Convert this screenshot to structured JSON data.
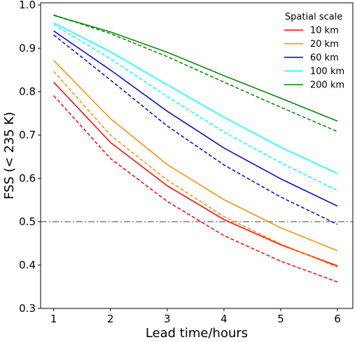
{
  "chart_data": {
    "type": "line",
    "xlabel": "Lead time/hours",
    "ylabel": "FSS (< 235 K)",
    "xlim": [
      0.77,
      6.27
    ],
    "ylim": [
      0.3,
      1.005
    ],
    "xticks": [
      1,
      2,
      3,
      4,
      5,
      6
    ],
    "xtick_labels": [
      "1",
      "2",
      "3",
      "4",
      "5",
      "6"
    ],
    "yticks": [
      0.3,
      0.4,
      0.5,
      0.6,
      0.7,
      0.8,
      0.9,
      1.0
    ],
    "ytick_labels": [
      "0.3",
      "0.4",
      "0.5",
      "0.6",
      "0.7",
      "0.8",
      "0.9",
      "1.0"
    ],
    "grid": false,
    "legend_title": "Spatial scale",
    "legend_position": "top-right",
    "reference_line": {
      "y": 0.5,
      "style": "dash-dot",
      "color": "#808080"
    },
    "x": [
      1,
      2,
      3,
      4,
      5,
      6
    ],
    "series": [
      {
        "name": "10 km",
        "color": "#ff0000",
        "style": "solid",
        "values": [
          0.822,
          0.683,
          0.583,
          0.505,
          0.447,
          0.398
        ]
      },
      {
        "color": "#ff0000",
        "style": "dashed",
        "values": [
          0.791,
          0.646,
          0.547,
          0.468,
          0.409,
          0.361
        ]
      },
      {
        "name": "20 km",
        "color": "#ff8c00",
        "style": "solid",
        "values": [
          0.872,
          0.738,
          0.632,
          0.551,
          0.486,
          0.433
        ]
      },
      {
        "color": "#ff8c00",
        "style": "dashed",
        "values": [
          0.847,
          0.7,
          0.596,
          0.512,
          0.449,
          0.395
        ]
      },
      {
        "name": "60 km",
        "color": "#0000cd",
        "style": "solid",
        "values": [
          0.94,
          0.85,
          0.755,
          0.67,
          0.599,
          0.536
        ]
      },
      {
        "color": "#0000cd",
        "style": "dashed",
        "values": [
          0.931,
          0.827,
          0.721,
          0.631,
          0.557,
          0.494
        ]
      },
      {
        "name": "100 km",
        "color": "#00ffff",
        "style": "solid",
        "values": [
          0.959,
          0.892,
          0.816,
          0.741,
          0.672,
          0.611
        ]
      },
      {
        "color": "#00ffff",
        "style": "dashed",
        "values": [
          0.955,
          0.876,
          0.789,
          0.707,
          0.636,
          0.572
        ]
      },
      {
        "name": "200 km",
        "color": "#008000",
        "style": "solid",
        "values": [
          0.976,
          0.938,
          0.891,
          0.837,
          0.785,
          0.732
        ]
      },
      {
        "color": "#008000",
        "style": "dashed",
        "values": [
          0.977,
          0.934,
          0.881,
          0.822,
          0.764,
          0.708
        ]
      }
    ]
  }
}
